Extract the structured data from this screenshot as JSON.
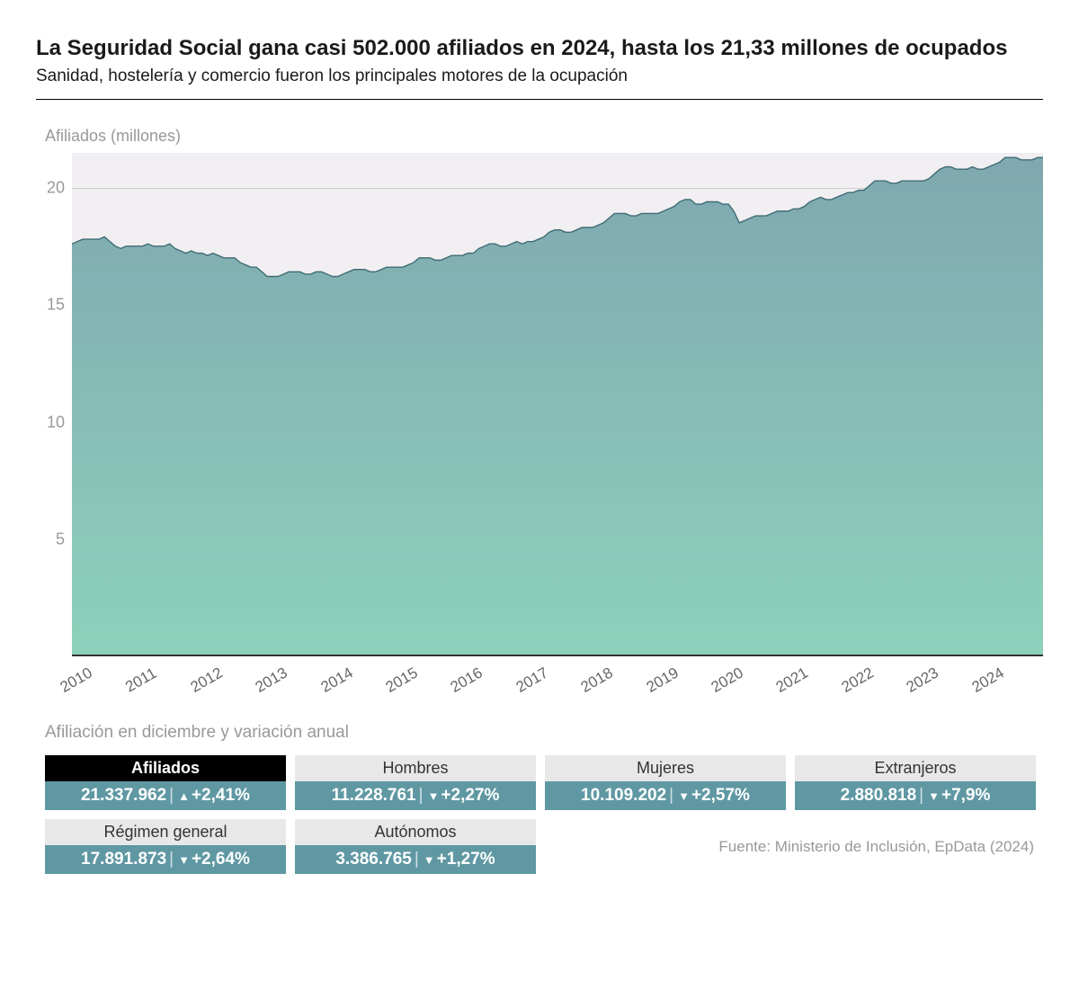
{
  "title": "La Seguridad Social gana casi 502.000 afiliados en 2024, hasta los 21,33 millones de ocupados",
  "subtitle": "Sanidad, hostelería y comercio fueron los principales motores de la ocupación",
  "chart": {
    "type": "area",
    "ylabel": "Afiliados (millones)",
    "ylim": [
      0,
      21.5
    ],
    "yticks": [
      5,
      10,
      15,
      20
    ],
    "xtick_labels": [
      "2010",
      "2011",
      "2012",
      "2013",
      "2014",
      "2015",
      "2016",
      "2017",
      "2018",
      "2019",
      "2020",
      "2021",
      "2022",
      "2023",
      "2024"
    ],
    "xtick_rotation_deg": -30,
    "background_color": "#f1eff2",
    "grid_color": "#cccccc",
    "fill_gradient_top": "#7fa8b0",
    "fill_gradient_bottom": "#8dd1bb",
    "line_color": "#3f6b73",
    "line_width": 1.4,
    "label_color": "#999999",
    "label_fontsize": 18,
    "series": [
      17.6,
      17.7,
      17.8,
      17.8,
      17.8,
      17.8,
      17.9,
      17.7,
      17.5,
      17.4,
      17.5,
      17.5,
      17.5,
      17.5,
      17.6,
      17.5,
      17.5,
      17.5,
      17.6,
      17.4,
      17.3,
      17.2,
      17.3,
      17.2,
      17.2,
      17.1,
      17.2,
      17.1,
      17.0,
      17.0,
      17.0,
      16.8,
      16.7,
      16.6,
      16.6,
      16.4,
      16.2,
      16.2,
      16.2,
      16.3,
      16.4,
      16.4,
      16.4,
      16.3,
      16.3,
      16.4,
      16.4,
      16.3,
      16.2,
      16.2,
      16.3,
      16.4,
      16.5,
      16.5,
      16.5,
      16.4,
      16.4,
      16.5,
      16.6,
      16.6,
      16.6,
      16.6,
      16.7,
      16.8,
      17.0,
      17.0,
      17.0,
      16.9,
      16.9,
      17.0,
      17.1,
      17.1,
      17.1,
      17.2,
      17.2,
      17.4,
      17.5,
      17.6,
      17.6,
      17.5,
      17.5,
      17.6,
      17.7,
      17.6,
      17.7,
      17.7,
      17.8,
      17.9,
      18.1,
      18.2,
      18.2,
      18.1,
      18.1,
      18.2,
      18.3,
      18.3,
      18.3,
      18.4,
      18.5,
      18.7,
      18.9,
      18.9,
      18.9,
      18.8,
      18.8,
      18.9,
      18.9,
      18.9,
      18.9,
      19.0,
      19.1,
      19.2,
      19.4,
      19.5,
      19.5,
      19.3,
      19.3,
      19.4,
      19.4,
      19.4,
      19.3,
      19.3,
      19.0,
      18.5,
      18.6,
      18.7,
      18.8,
      18.8,
      18.8,
      18.9,
      19.0,
      19.0,
      19.0,
      19.1,
      19.1,
      19.2,
      19.4,
      19.5,
      19.6,
      19.5,
      19.5,
      19.6,
      19.7,
      19.8,
      19.8,
      19.9,
      19.9,
      20.1,
      20.3,
      20.3,
      20.3,
      20.2,
      20.2,
      20.3,
      20.3,
      20.3,
      20.3,
      20.3,
      20.4,
      20.6,
      20.8,
      20.9,
      20.9,
      20.8,
      20.8,
      20.8,
      20.9,
      20.8,
      20.8,
      20.9,
      21.0,
      21.1,
      21.3,
      21.3,
      21.3,
      21.2,
      21.2,
      21.2,
      21.3,
      21.3
    ]
  },
  "table": {
    "title": "Afiliación en diciembre y variación anual",
    "header_primary_bg": "#000000",
    "header_primary_fg": "#ffffff",
    "header_secondary_bg": "#e8e8e8",
    "header_secondary_fg": "#333333",
    "value_bg": "#5f98a3",
    "value_fg": "#ffffff",
    "row1": [
      {
        "label": "Afiliados",
        "value": "21.337.962",
        "delta": "+2,41%",
        "dir": "up",
        "primary": true
      },
      {
        "label": "Hombres",
        "value": "11.228.761",
        "delta": "+2,27%",
        "dir": "down",
        "primary": false
      },
      {
        "label": "Mujeres",
        "value": "10.109.202",
        "delta": "+2,57%",
        "dir": "down",
        "primary": false
      },
      {
        "label": "Extranjeros",
        "value": "2.880.818",
        "delta": "+7,9%",
        "dir": "down",
        "primary": false
      }
    ],
    "row2": [
      {
        "label": "Régimen general",
        "value": "17.891.873",
        "delta": "+2,64%",
        "dir": "down",
        "primary": false
      },
      {
        "label": "Autónomos",
        "value": "3.386.765",
        "delta": "+1,27%",
        "dir": "down",
        "primary": false
      }
    ]
  },
  "source": "Fuente: Ministerio de Inclusión, EpData (2024)"
}
